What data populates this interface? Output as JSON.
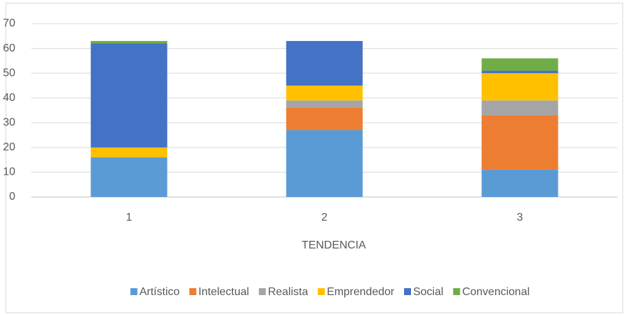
{
  "chart_data": {
    "type": "stacked_bar",
    "x_label": "TENDENCIA",
    "categories": [
      "1",
      "2",
      "3"
    ],
    "series": [
      {
        "name": "Artístico",
        "color": "#5b9bd5",
        "values": [
          16,
          27,
          11
        ]
      },
      {
        "name": "Intelectual",
        "color": "#ed7d31",
        "values": [
          0,
          9,
          22
        ]
      },
      {
        "name": "Realista",
        "color": "#a5a5a5",
        "values": [
          0,
          3,
          6
        ]
      },
      {
        "name": "Emprendedor",
        "color": "#ffc000",
        "values": [
          4,
          6,
          11
        ]
      },
      {
        "name": "Social",
        "color": "#4472c4",
        "values": [
          42,
          18,
          1
        ]
      },
      {
        "name": "Convencional",
        "color": "#70ad47",
        "values": [
          1,
          0,
          5
        ]
      }
    ],
    "ylim": [
      0,
      70
    ],
    "yticks": [
      0,
      10,
      20,
      30,
      40,
      50,
      60,
      70
    ],
    "grid": true,
    "legend": "bottom"
  }
}
